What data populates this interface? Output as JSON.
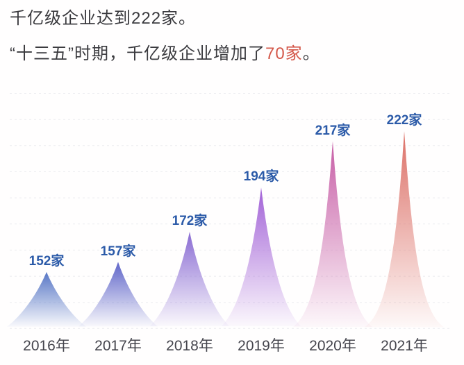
{
  "page": {
    "background": "#FFFEFE"
  },
  "header": {
    "line1": "千亿级企业达到222家。",
    "line2_prefix": "“十三五”时期，千亿级企业增加了",
    "line2_highlight": "70家",
    "line2_suffix": "。",
    "text_color": "#3A3A3E",
    "highlight_color": "#D4584A"
  },
  "chart_data": {
    "type": "area",
    "title": "",
    "xlabel": "",
    "ylabel": "",
    "categories": [
      "2016年",
      "2017年",
      "2018年",
      "2019年",
      "2020年",
      "2021年"
    ],
    "values": [
      152,
      157,
      172,
      194,
      217,
      222
    ],
    "value_labels": [
      "152家",
      "157家",
      "172家",
      "194家",
      "217家",
      "222家"
    ],
    "unit": "家",
    "grid": true,
    "gridline_style": "dashed",
    "gridline_count": 10,
    "legend": false,
    "ylim_estimated": [
      124,
      241
    ],
    "peak_colors_top": [
      "#5877C6",
      "#6066C9",
      "#8A6CD3",
      "#A262D7",
      "#C75EA6",
      "#DC7067"
    ],
    "value_label_color": "#2B5AA8",
    "category_label_color": "#45454D",
    "gridline_color": "#EBEBEF"
  }
}
